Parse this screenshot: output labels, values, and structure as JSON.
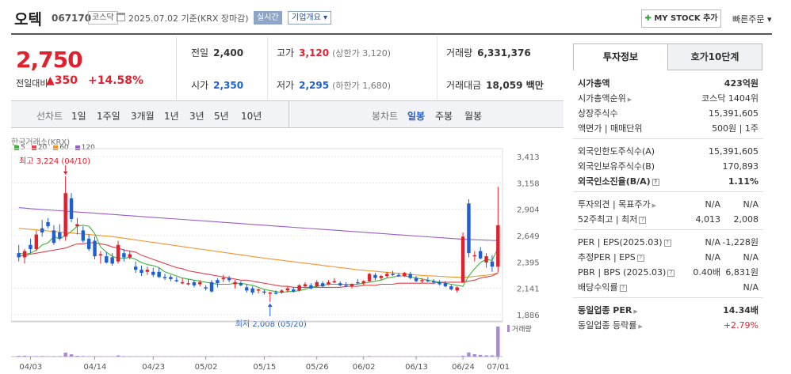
{
  "header": {
    "stock_name": "오텍",
    "stock_code": "067170",
    "market": "코스닥",
    "date_info": "2025.07.02  기준(KRX 장마감)",
    "realtime": "실시간",
    "company_overview": "기업개요",
    "my_stock": "MY STOCK 추가",
    "quick_order": "빠른주문"
  },
  "price": {
    "current": "2,750",
    "change_label": "전일대비",
    "change": "▲350",
    "change_pct": "+14.58%"
  },
  "info": {
    "prev_label": "전일",
    "prev": "2,400",
    "open_label": "시가",
    "open": "2,350",
    "high_label": "고가",
    "high": "3,120",
    "upper_limit": "(상한가 3,120)",
    "low_label": "저가",
    "low": "2,295",
    "lower_limit": "(하한가 1,680)",
    "volume_label": "거래량",
    "volume": "6,331,376",
    "amount_label": "거래대금",
    "amount": "18,059 백만"
  },
  "period_bar": {
    "line_title": "선차트",
    "line_items": [
      "1일",
      "1주일",
      "3개월",
      "1년",
      "3년",
      "5년",
      "10년"
    ],
    "candle_title": "봉차트",
    "candle_items": [
      "일봉",
      "주봉",
      "월봉"
    ],
    "active_candle": "일봉"
  },
  "chart_data": {
    "type": "candlestick",
    "exchange": "한국거래소(KRX)",
    "ma_legend": [
      {
        "label": "5",
        "color": "#3cb43c"
      },
      {
        "label": "20",
        "color": "#e0414a"
      },
      {
        "label": "60",
        "color": "#f0962a"
      },
      {
        "label": "120",
        "color": "#9b5cc9"
      }
    ],
    "y_ticks": [
      "3,413",
      "3,158",
      "2,904",
      "2,649",
      "2,395",
      "2,141",
      "1,886"
    ],
    "y_range": [
      1886,
      3413
    ],
    "x_ticks": [
      "04/03",
      "04/14",
      "04/23",
      "05/02",
      "05/15",
      "05/26",
      "06/02",
      "06/13",
      "06/24",
      "07/01"
    ],
    "max_annotation": "최고 3,224 (04/10)",
    "min_annotation": "최저 2,008 (05/20)",
    "volume_label": "거래량",
    "colors": {
      "up": "#e1202e",
      "down": "#1e5fd4"
    },
    "candles": [
      {
        "o": 2480,
        "h": 2560,
        "l": 2400,
        "c": 2440
      },
      {
        "o": 2440,
        "h": 2520,
        "l": 2380,
        "c": 2500
      },
      {
        "o": 2560,
        "h": 2620,
        "l": 2480,
        "c": 2520
      },
      {
        "o": 2520,
        "h": 2700,
        "l": 2500,
        "c": 2660
      },
      {
        "o": 2720,
        "h": 2800,
        "l": 2640,
        "c": 2680
      },
      {
        "o": 2780,
        "h": 2820,
        "l": 2720,
        "c": 2740
      },
      {
        "o": 2700,
        "h": 2750,
        "l": 2560,
        "c": 2580
      },
      {
        "o": 2680,
        "h": 2760,
        "l": 2600,
        "c": 2620
      },
      {
        "o": 2640,
        "h": 3224,
        "l": 2600,
        "c": 3060
      },
      {
        "o": 3010,
        "h": 3060,
        "l": 2780,
        "c": 2810
      },
      {
        "o": 2740,
        "h": 2820,
        "l": 2660,
        "c": 2760
      },
      {
        "o": 2700,
        "h": 2740,
        "l": 2580,
        "c": 2600
      },
      {
        "o": 2620,
        "h": 2660,
        "l": 2500,
        "c": 2520
      },
      {
        "o": 2600,
        "h": 2640,
        "l": 2420,
        "c": 2450
      },
      {
        "o": 2460,
        "h": 2500,
        "l": 2380,
        "c": 2470
      },
      {
        "o": 2450,
        "h": 2490,
        "l": 2380,
        "c": 2390
      },
      {
        "o": 2440,
        "h": 2480,
        "l": 2360,
        "c": 2380
      },
      {
        "o": 2400,
        "h": 2600,
        "l": 2380,
        "c": 2560
      },
      {
        "o": 2480,
        "h": 2520,
        "l": 2400,
        "c": 2440
      },
      {
        "o": 2440,
        "h": 2500,
        "l": 2420,
        "c": 2470
      },
      {
        "o": 2350,
        "h": 2400,
        "l": 2290,
        "c": 2320
      },
      {
        "o": 2320,
        "h": 2360,
        "l": 2260,
        "c": 2290
      },
      {
        "o": 2300,
        "h": 2350,
        "l": 2270,
        "c": 2320
      },
      {
        "o": 2300,
        "h": 2340,
        "l": 2250,
        "c": 2270
      },
      {
        "o": 2300,
        "h": 2340,
        "l": 2240,
        "c": 2250
      },
      {
        "o": 2250,
        "h": 2280,
        "l": 2220,
        "c": 2240
      },
      {
        "o": 2250,
        "h": 2270,
        "l": 2210,
        "c": 2230
      },
      {
        "o": 2220,
        "h": 2250,
        "l": 2200,
        "c": 2210
      },
      {
        "o": 2200,
        "h": 2240,
        "l": 2180,
        "c": 2200
      },
      {
        "o": 2180,
        "h": 2230,
        "l": 2170,
        "c": 2190
      },
      {
        "o": 2200,
        "h": 2220,
        "l": 2150,
        "c": 2170
      },
      {
        "o": 2180,
        "h": 2220,
        "l": 2160,
        "c": 2200
      },
      {
        "o": 2150,
        "h": 2170,
        "l": 2120,
        "c": 2140
      },
      {
        "o": 2200,
        "h": 2220,
        "l": 2100,
        "c": 2110
      },
      {
        "o": 2220,
        "h": 2240,
        "l": 2150,
        "c": 2190
      },
      {
        "o": 2230,
        "h": 2270,
        "l": 2200,
        "c": 2240
      },
      {
        "o": 2240,
        "h": 2260,
        "l": 2200,
        "c": 2220
      },
      {
        "o": 2180,
        "h": 2220,
        "l": 2140,
        "c": 2200
      },
      {
        "o": 2190,
        "h": 2210,
        "l": 2160,
        "c": 2170
      },
      {
        "o": 2150,
        "h": 2180,
        "l": 2100,
        "c": 2120
      },
      {
        "o": 2140,
        "h": 2160,
        "l": 2080,
        "c": 2100
      },
      {
        "o": 2120,
        "h": 2140,
        "l": 2090,
        "c": 2130
      },
      {
        "o": 2110,
        "h": 2130,
        "l": 2080,
        "c": 2100
      },
      {
        "o": 2090,
        "h": 2110,
        "l": 2008,
        "c": 2100
      },
      {
        "o": 2100,
        "h": 2120,
        "l": 2080,
        "c": 2090
      },
      {
        "o": 2100,
        "h": 2130,
        "l": 2090,
        "c": 2120
      },
      {
        "o": 2120,
        "h": 2160,
        "l": 2100,
        "c": 2140
      },
      {
        "o": 2130,
        "h": 2150,
        "l": 2100,
        "c": 2110
      },
      {
        "o": 2120,
        "h": 2180,
        "l": 2110,
        "c": 2170
      },
      {
        "o": 2160,
        "h": 2200,
        "l": 2140,
        "c": 2180
      },
      {
        "o": 2170,
        "h": 2190,
        "l": 2130,
        "c": 2140
      },
      {
        "o": 2160,
        "h": 2220,
        "l": 2150,
        "c": 2200
      },
      {
        "o": 2190,
        "h": 2210,
        "l": 2150,
        "c": 2160
      },
      {
        "o": 2180,
        "h": 2220,
        "l": 2170,
        "c": 2200
      },
      {
        "o": 2200,
        "h": 2240,
        "l": 2190,
        "c": 2210
      },
      {
        "o": 2190,
        "h": 2210,
        "l": 2160,
        "c": 2170
      },
      {
        "o": 2170,
        "h": 2200,
        "l": 2150,
        "c": 2160
      },
      {
        "o": 2160,
        "h": 2190,
        "l": 2140,
        "c": 2180
      },
      {
        "o": 2200,
        "h": 2230,
        "l": 2180,
        "c": 2190
      },
      {
        "o": 2190,
        "h": 2220,
        "l": 2170,
        "c": 2210
      },
      {
        "o": 2210,
        "h": 2290,
        "l": 2200,
        "c": 2280
      },
      {
        "o": 2270,
        "h": 2290,
        "l": 2220,
        "c": 2240
      },
      {
        "o": 2240,
        "h": 2270,
        "l": 2220,
        "c": 2260
      },
      {
        "o": 2260,
        "h": 2300,
        "l": 2240,
        "c": 2280
      },
      {
        "o": 2280,
        "h": 2310,
        "l": 2260,
        "c": 2270
      },
      {
        "o": 2270,
        "h": 2290,
        "l": 2250,
        "c": 2260
      },
      {
        "o": 2260,
        "h": 2300,
        "l": 2250,
        "c": 2290
      },
      {
        "o": 2280,
        "h": 2300,
        "l": 2230,
        "c": 2240
      },
      {
        "o": 2240,
        "h": 2260,
        "l": 2200,
        "c": 2210
      },
      {
        "o": 2210,
        "h": 2240,
        "l": 2190,
        "c": 2220
      },
      {
        "o": 2220,
        "h": 2250,
        "l": 2200,
        "c": 2210
      },
      {
        "o": 2210,
        "h": 2230,
        "l": 2180,
        "c": 2200
      },
      {
        "o": 2200,
        "h": 2220,
        "l": 2170,
        "c": 2180
      },
      {
        "o": 2190,
        "h": 2210,
        "l": 2150,
        "c": 2160
      },
      {
        "o": 2160,
        "h": 2180,
        "l": 2120,
        "c": 2130
      },
      {
        "o": 2120,
        "h": 2160,
        "l": 2100,
        "c": 2150
      },
      {
        "o": 2200,
        "h": 2680,
        "l": 2190,
        "c": 2640
      },
      {
        "o": 2960,
        "h": 3000,
        "l": 2440,
        "c": 2480
      },
      {
        "o": 2450,
        "h": 2500,
        "l": 2400,
        "c": 2460
      },
      {
        "o": 2500,
        "h": 2540,
        "l": 2420,
        "c": 2430
      },
      {
        "o": 2390,
        "h": 2480,
        "l": 2340,
        "c": 2450
      },
      {
        "o": 2400,
        "h": 2460,
        "l": 2300,
        "c": 2350
      },
      {
        "o": 2350,
        "h": 3120,
        "l": 2295,
        "c": 2750
      }
    ],
    "volumes": [
      18,
      22,
      10,
      12,
      14,
      9,
      11,
      12,
      100,
      58,
      20,
      14,
      10,
      12,
      9,
      8,
      10,
      30,
      12,
      8,
      9,
      7,
      7,
      8,
      9,
      6,
      6,
      7,
      6,
      6,
      7,
      6,
      6,
      12,
      10,
      8,
      7,
      6,
      6,
      7,
      6,
      6,
      5,
      14,
      7,
      7,
      8,
      6,
      9,
      9,
      6,
      10,
      6,
      7,
      8,
      6,
      6,
      8,
      7,
      8,
      14,
      8,
      8,
      10,
      8,
      8,
      10,
      8,
      6,
      6,
      6,
      6,
      6,
      6,
      6,
      6,
      20,
      105,
      60,
      42,
      30,
      30,
      760
    ],
    "vol_max": 760,
    "ma5": [
      2480,
      2470,
      2480,
      2510,
      2560,
      2580,
      2640,
      2620,
      2650,
      2690,
      2740,
      2750,
      2740,
      2670,
      2540,
      2490,
      2450,
      2430,
      2430,
      2440,
      2420,
      2390,
      2370,
      2360,
      2340,
      2300,
      2280,
      2260,
      2240,
      2230,
      2220,
      2210,
      2200,
      2190,
      2180,
      2180,
      2180,
      2190,
      2190,
      2180,
      2170,
      2150,
      2130,
      2120,
      2110,
      2100,
      2110,
      2110,
      2120,
      2130,
      2150,
      2160,
      2170,
      2180,
      2180,
      2180,
      2180,
      2180,
      2180,
      2190,
      2200,
      2210,
      2220,
      2240,
      2250,
      2260,
      2260,
      2250,
      2240,
      2230,
      2220,
      2210,
      2200,
      2190,
      2180,
      2170,
      2160,
      2260,
      2330,
      2390,
      2420,
      2410,
      2530
    ],
    "ma20": [
      2450,
      2460,
      2470,
      2480,
      2490,
      2500,
      2510,
      2520,
      2530,
      2550,
      2570,
      2570,
      2580,
      2580,
      2570,
      2560,
      2540,
      2530,
      2510,
      2500,
      2490,
      2460,
      2440,
      2420,
      2400,
      2380,
      2360,
      2340,
      2330,
      2310,
      2300,
      2290,
      2280,
      2270,
      2260,
      2250,
      2240,
      2230,
      2220,
      2220,
      2210,
      2200,
      2190,
      2180,
      2170,
      2160,
      2160,
      2150,
      2150,
      2150,
      2150,
      2150,
      2150,
      2150,
      2150,
      2150,
      2160,
      2160,
      2160,
      2170,
      2170,
      2170,
      2180,
      2180,
      2180,
      2190,
      2190,
      2190,
      2190,
      2190,
      2190,
      2190,
      2200,
      2200,
      2200,
      2200,
      2200,
      2210,
      2220,
      2240,
      2250,
      2260,
      2290
    ],
    "ma60": [
      2720,
      2715,
      2710,
      2705,
      2700,
      2695,
      2690,
      2685,
      2680,
      2675,
      2670,
      2665,
      2660,
      2655,
      2650,
      2645,
      2640,
      2632,
      2624,
      2616,
      2608,
      2600,
      2592,
      2584,
      2576,
      2568,
      2560,
      2552,
      2544,
      2536,
      2528,
      2520,
      2512,
      2504,
      2496,
      2488,
      2480,
      2472,
      2464,
      2456,
      2448,
      2440,
      2432,
      2425,
      2418,
      2411,
      2404,
      2397,
      2390,
      2383,
      2376,
      2369,
      2362,
      2355,
      2348,
      2341,
      2334,
      2327,
      2320,
      2315,
      2310,
      2305,
      2300,
      2295,
      2290,
      2285,
      2280,
      2275,
      2270,
      2265,
      2262,
      2259,
      2256,
      2253,
      2250,
      2248,
      2246,
      2250,
      2256,
      2262,
      2268,
      2274,
      2290
    ],
    "ma120": [
      2920,
      2915,
      2910,
      2906,
      2902,
      2898,
      2894,
      2890,
      2886,
      2882,
      2878,
      2874,
      2870,
      2866,
      2862,
      2858,
      2854,
      2850,
      2846,
      2842,
      2838,
      2834,
      2830,
      2826,
      2822,
      2818,
      2814,
      2810,
      2806,
      2802,
      2798,
      2794,
      2790,
      2786,
      2782,
      2778,
      2774,
      2770,
      2766,
      2762,
      2758,
      2754,
      2750,
      2746,
      2742,
      2738,
      2734,
      2730,
      2726,
      2722,
      2718,
      2714,
      2710,
      2706,
      2702,
      2698,
      2694,
      2690,
      2686,
      2682,
      2678,
      2674,
      2670,
      2666,
      2662,
      2658,
      2654,
      2650,
      2646,
      2642,
      2638,
      2634,
      2630,
      2626,
      2622,
      2618,
      2614,
      2612,
      2610,
      2608,
      2606,
      2604,
      2602
    ]
  },
  "right_panel": {
    "tab_invest": "투자정보",
    "tab_hoga": "호가10단계",
    "rows1": [
      {
        "label": "시가총액",
        "value": "423억원",
        "bold": true
      },
      {
        "label": "시가총액순위",
        "value": "코스닥 1404위",
        "arrow": true
      },
      {
        "label": "상장주식수",
        "value": "15,391,605"
      },
      {
        "label": "액면가 | 매매단위",
        "value": "500원 | 1주"
      }
    ],
    "rows2": [
      {
        "label": "외국인한도주식수(A)",
        "value": "15,391,605"
      },
      {
        "label": "외국인보유주식수(B)",
        "value": "170,893"
      },
      {
        "label": "외국인소진율(B/A)",
        "value": "1.11%",
        "bold": true,
        "q": true
      }
    ],
    "rows3": [
      {
        "label": "투자의견 | 목표주가",
        "v1": "N/A",
        "value": "N/A",
        "arrow": true
      },
      {
        "label": "52주최고 | 최저",
        "v1": "4,013",
        "value": "2,008",
        "q": true
      }
    ],
    "rows4": [
      {
        "label": "PER | EPS(2025.03)",
        "v1": "N/A",
        "value": "-1,228원",
        "q": true
      },
      {
        "label": "추정PER | EPS",
        "v1": "N/A",
        "value": "N/A",
        "q": true
      },
      {
        "label": "PBR | BPS (2025.03)",
        "v1": "0.40배",
        "value": "6,831원",
        "q": true
      },
      {
        "label": "배당수익률",
        "value": "N/A",
        "q": true
      }
    ],
    "rows5": [
      {
        "label": "동일업종 PER",
        "value": "14.34배",
        "bold": true,
        "arrow": true
      },
      {
        "label": "동일업종 등락률",
        "value": "+2.79%",
        "red": true,
        "arrow": true
      }
    ]
  }
}
